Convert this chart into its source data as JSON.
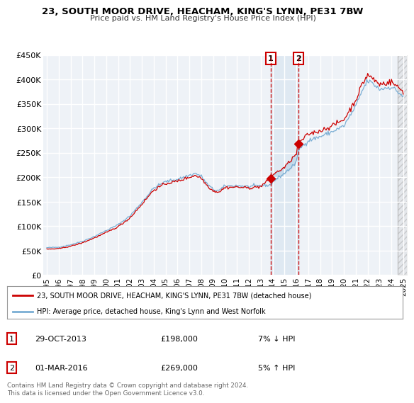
{
  "title": "23, SOUTH MOOR DRIVE, HEACHAM, KING'S LYNN, PE31 7BW",
  "subtitle": "Price paid vs. HM Land Registry's House Price Index (HPI)",
  "ylabel": "",
  "xlabel": "",
  "ylim": [
    0,
    450000
  ],
  "yticks": [
    0,
    50000,
    100000,
    150000,
    200000,
    250000,
    300000,
    350000,
    400000,
    450000
  ],
  "ytick_labels": [
    "£0",
    "£50K",
    "£100K",
    "£150K",
    "£200K",
    "£250K",
    "£300K",
    "£350K",
    "£400K",
    "£450K"
  ],
  "xtick_start": 1995,
  "xtick_end": 2025,
  "line_color_red": "#cc0000",
  "line_color_blue": "#7aaed4",
  "background_color": "#eef2f7",
  "grid_color": "#ffffff",
  "transaction1_x": 2013.83,
  "transaction1_y": 198000,
  "transaction2_x": 2016.17,
  "transaction2_y": 269000,
  "transaction1_date": "29-OCT-2013",
  "transaction1_price": "£198,000",
  "transaction1_hpi": "7% ↓ HPI",
  "transaction2_date": "01-MAR-2016",
  "transaction2_price": "£269,000",
  "transaction2_hpi": "5% ↑ HPI",
  "legend_line1": "23, SOUTH MOOR DRIVE, HEACHAM, KING'S LYNN, PE31 7BW (detached house)",
  "legend_line2": "HPI: Average price, detached house, King's Lynn and West Norfolk",
  "footnote": "Contains HM Land Registry data © Crown copyright and database right 2024.\nThis data is licensed under the Open Government Licence v3.0.",
  "future_start": 2024.5
}
